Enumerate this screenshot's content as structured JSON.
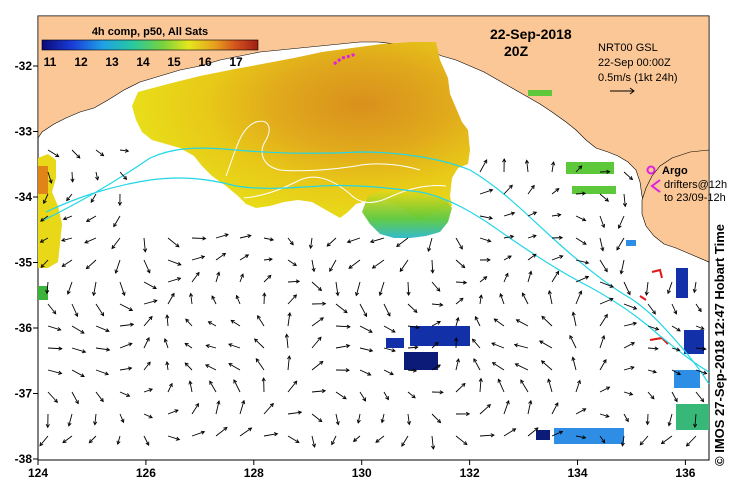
{
  "map": {
    "colorbar": {
      "title": "4h comp, p50, All Sats",
      "ticks": [
        "11",
        "12",
        "13",
        "14",
        "15",
        "16",
        "17"
      ],
      "colors": [
        "#0a0a78",
        "#1a3cd8",
        "#1ea0e6",
        "#28c8a0",
        "#78d23c",
        "#e6e61e",
        "#e6a01e",
        "#d2501e",
        "#a01e14"
      ]
    },
    "date": "22-Sep-2018",
    "time": "20Z",
    "info": {
      "line1": "NRT00 GSL",
      "line2": "22-Sep 00:00Z",
      "line3": "0.5m/s (1kt 24h)"
    },
    "argo": {
      "label": "Argo",
      "drifters": "drifters@12h",
      "until": "to 23/09-12h",
      "color": "#e020e0"
    },
    "side_label": "IMOS 27-Sep-2018 12:47 Hobart Time",
    "side_symbol": "©",
    "x_ticks": [
      "124",
      "126",
      "128",
      "130",
      "132",
      "134",
      "136"
    ],
    "y_ticks": [
      "-32",
      "-33",
      "-34",
      "-35",
      "-36",
      "-37",
      "-38"
    ],
    "colors": {
      "land": "#fbc796",
      "sst_warm": "#d9901c",
      "sst_orange": "#e8b818",
      "sst_yellow": "#e8e018",
      "sst_green": "#5cc83a",
      "sst_cyan": "#28b8c8",
      "sst_blue": "#1230a8",
      "sst_darkblue": "#0c1a78",
      "isobath": "#22d6e6"
    }
  }
}
